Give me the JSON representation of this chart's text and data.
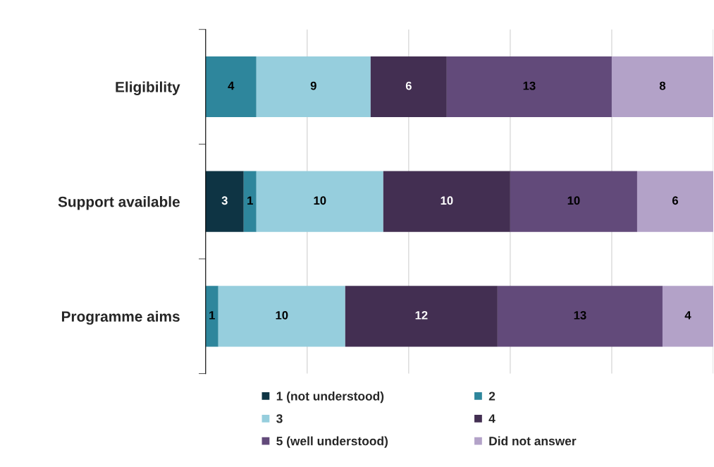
{
  "chart_data": {
    "type": "bar",
    "orientation": "horizontal",
    "stacked": true,
    "categories": [
      "Eligibility",
      "Support available",
      "Programme aims"
    ],
    "series": [
      {
        "name": "1 (not understood)",
        "color": "#0e3444",
        "values": [
          null,
          3,
          null
        ]
      },
      {
        "name": "2",
        "color": "#2e869c",
        "values": [
          4,
          1,
          1
        ]
      },
      {
        "name": "3",
        "color": "#96cedd",
        "values": [
          9,
          10,
          10
        ]
      },
      {
        "name": "4",
        "color": "#432f52",
        "values": [
          6,
          10,
          12
        ]
      },
      {
        "name": "5 (well understood)",
        "color": "#624a7a",
        "values": [
          13,
          10,
          13
        ]
      },
      {
        "name": "Did not answer",
        "color": "#b3a2c8",
        "values": [
          8,
          6,
          4
        ]
      }
    ],
    "xlim": [
      0,
      40
    ],
    "xticks": [
      {
        "value": 0,
        "label": null
      },
      {
        "value": 8,
        "label": null
      },
      {
        "value": 16,
        "label": null
      },
      {
        "value": 24,
        "label": null
      },
      {
        "value": 32,
        "label": null
      },
      {
        "value": 40,
        "label": null
      }
    ],
    "grid": "x",
    "tick_labels": "y",
    "data_labels": true,
    "legend": "bottom"
  }
}
